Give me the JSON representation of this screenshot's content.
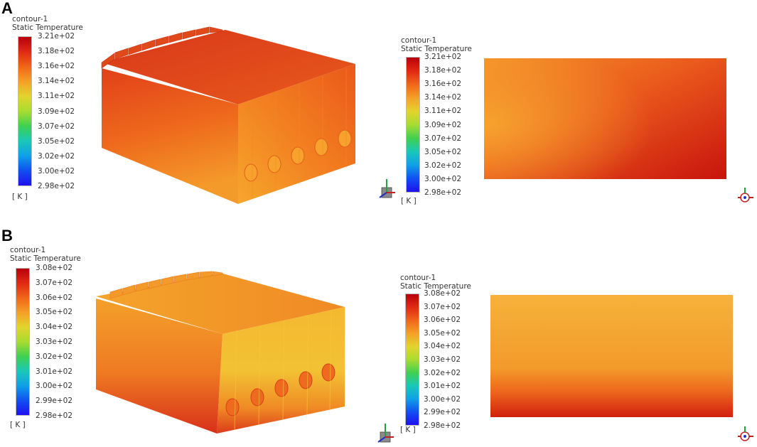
{
  "panels": [
    {
      "letter": "A",
      "contour_name": "contour-1",
      "variable": "Static Temperature",
      "unit": "[ K ]",
      "legend_ticks": [
        "3.21e+02",
        "3.18e+02",
        "3.16e+02",
        "3.14e+02",
        "3.11e+02",
        "3.09e+02",
        "3.07e+02",
        "3.05e+02",
        "3.02e+02",
        "3.00e+02",
        "2.98e+02"
      ],
      "colormap": [
        "#b8000c",
        "#e02a14",
        "#f06618",
        "#f5a028",
        "#e2d42c",
        "#a8dc30",
        "#40d050",
        "#18c8b8",
        "#10a0e8",
        "#1050f0",
        "#2010f0"
      ]
    },
    {
      "letter": "B",
      "contour_name": "contour-1",
      "variable": "Static Temperature",
      "unit": "[ K ]",
      "legend_ticks": [
        "3.08e+02",
        "3.07e+02",
        "3.06e+02",
        "3.05e+02",
        "3.04e+02",
        "3.03e+02",
        "3.02e+02",
        "3.01e+02",
        "3.00e+02",
        "2.99e+02",
        "2.98e+02"
      ],
      "colormap": [
        "#b8000c",
        "#e02a14",
        "#f06618",
        "#f5a028",
        "#e2d42c",
        "#a8dc30",
        "#40d050",
        "#18c8b8",
        "#10a0e8",
        "#1050f0",
        "#2010f0"
      ]
    }
  ]
}
